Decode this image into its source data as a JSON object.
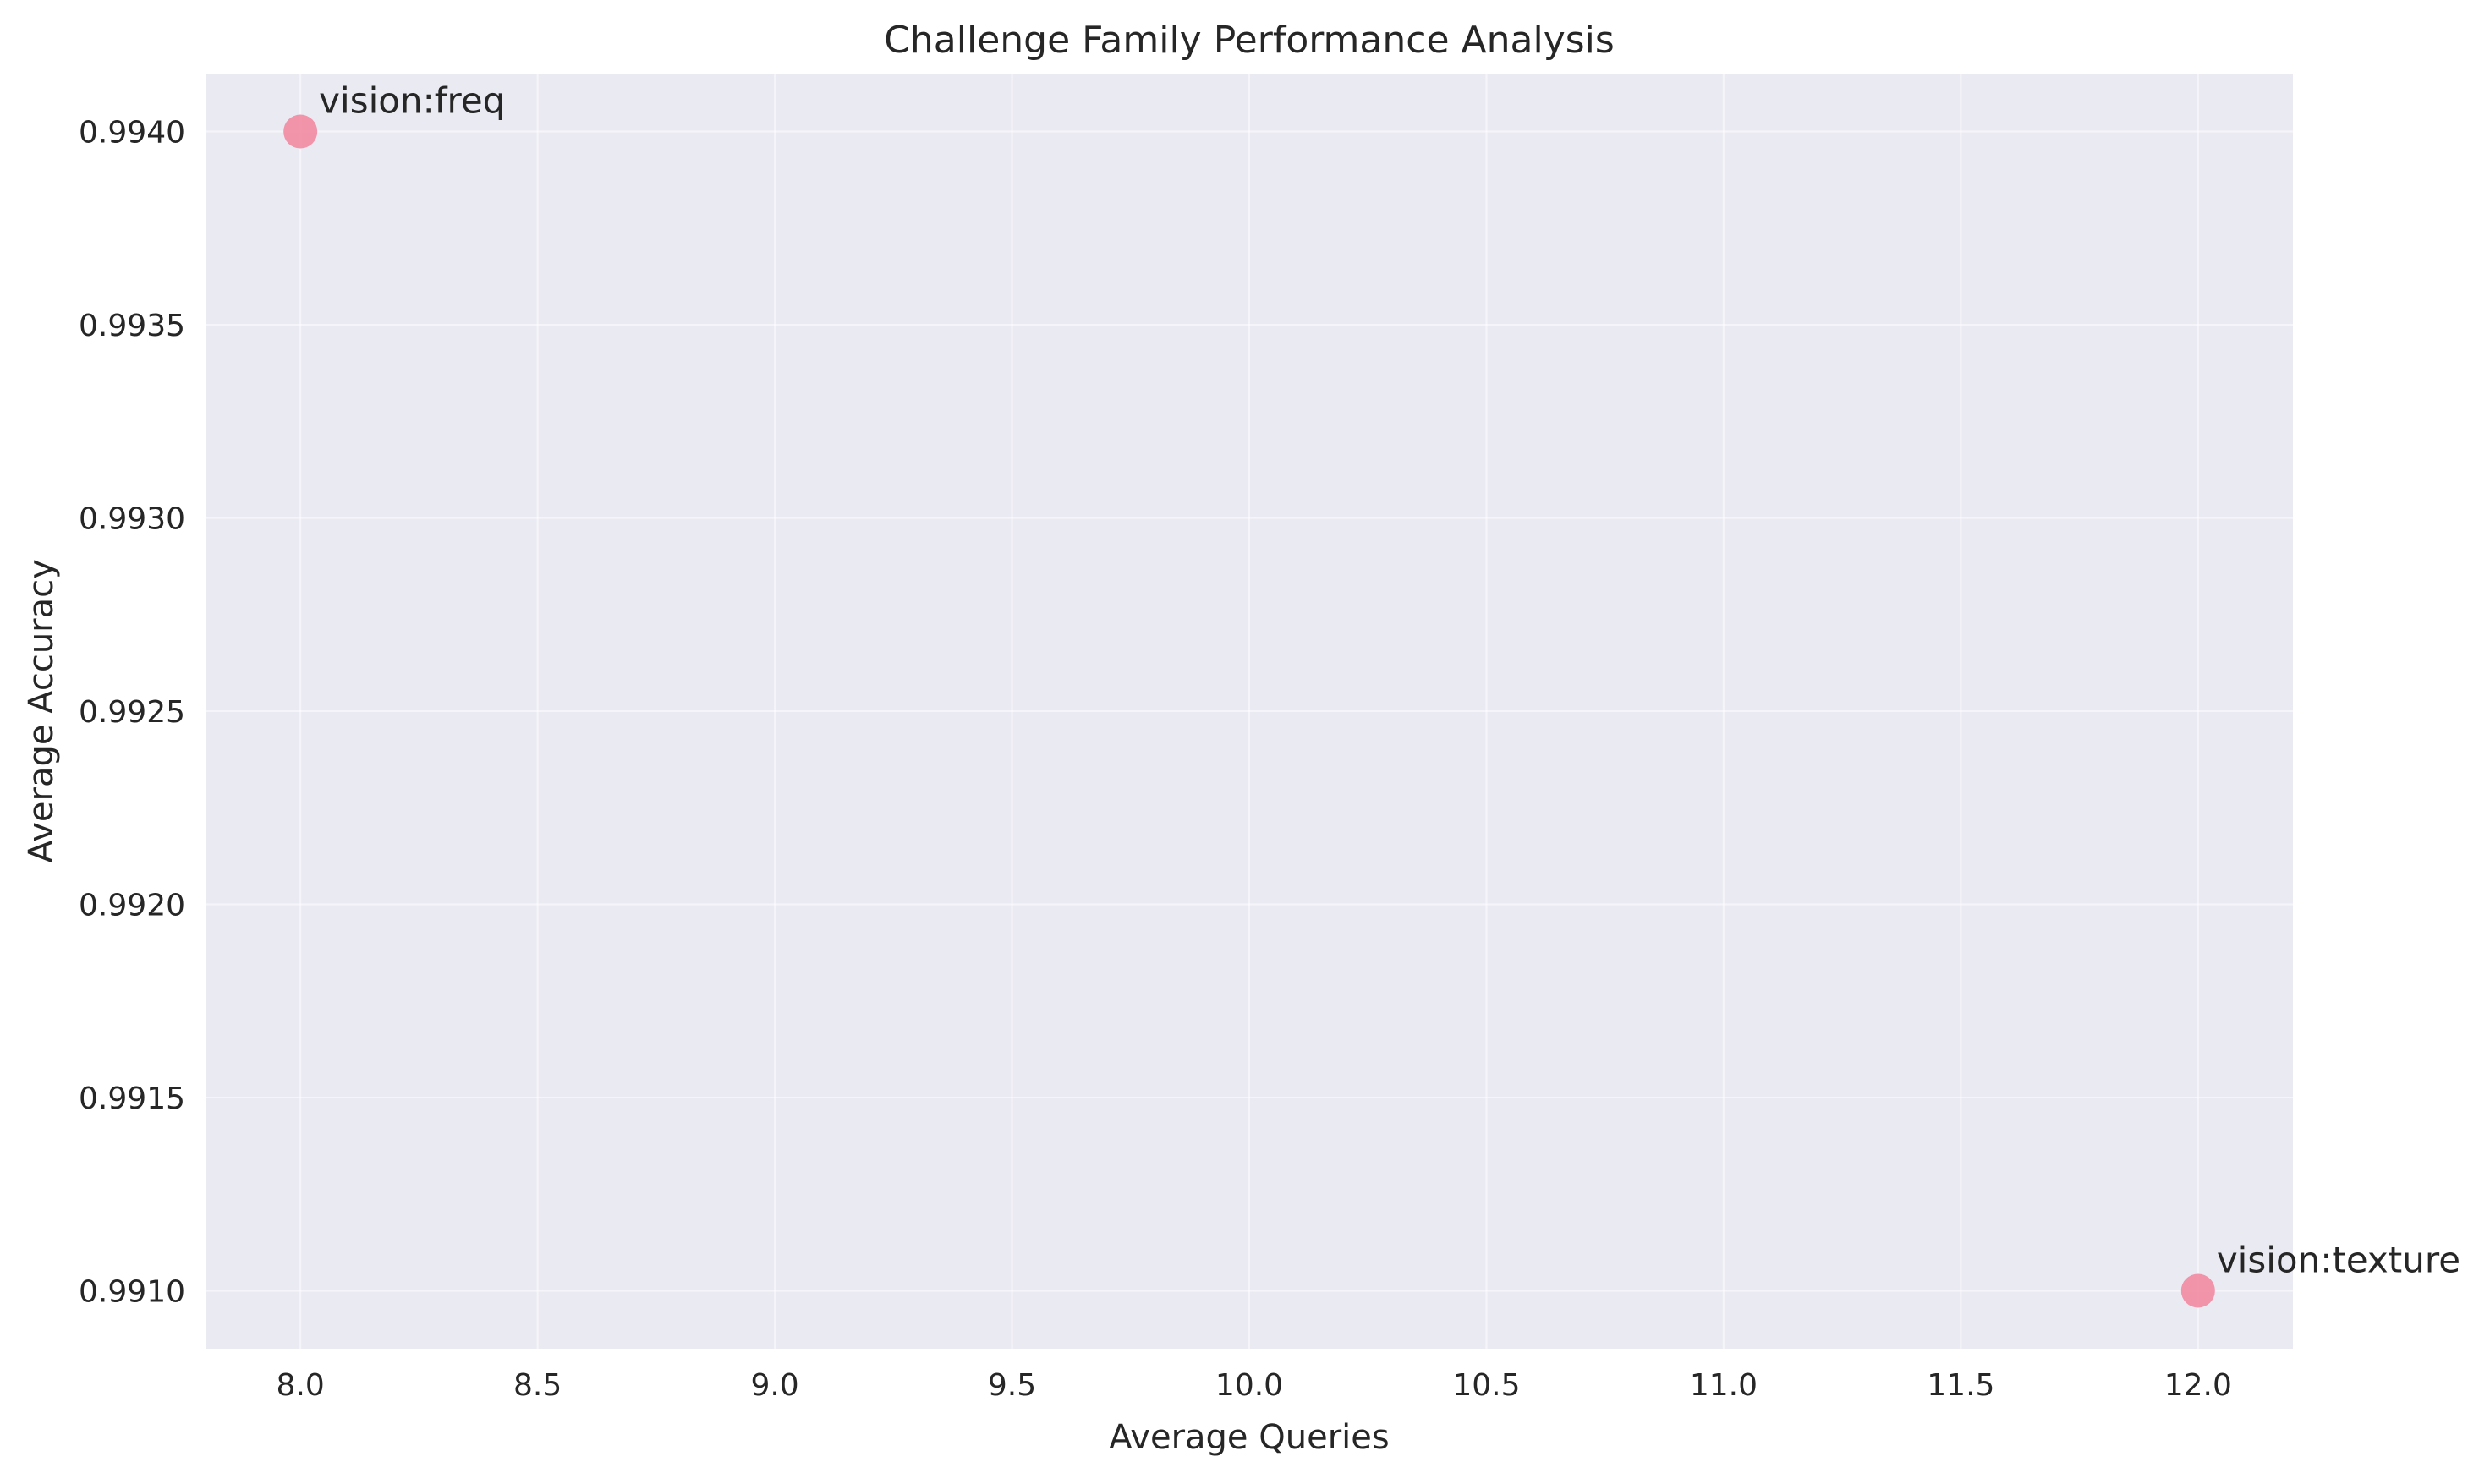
{
  "chart_data": {
    "type": "scatter",
    "title": "Challenge Family Performance Analysis",
    "xlabel": "Average Queries",
    "ylabel": "Average Accuracy",
    "xlim": [
      7.8,
      12.2
    ],
    "ylim": [
      0.99085,
      0.99415
    ],
    "x_ticks": [
      8.0,
      8.5,
      9.0,
      9.5,
      10.0,
      10.5,
      11.0,
      11.5,
      12.0
    ],
    "x_tick_labels": [
      "8.0",
      "8.5",
      "9.0",
      "9.5",
      "10.0",
      "10.5",
      "11.0",
      "11.5",
      "12.0"
    ],
    "y_ticks": [
      0.991,
      0.9915,
      0.992,
      0.9925,
      0.993,
      0.9935,
      0.994
    ],
    "y_tick_labels": [
      "0.9910",
      "0.9915",
      "0.9920",
      "0.9925",
      "0.9930",
      "0.9935",
      "0.9940"
    ],
    "grid": true,
    "points": [
      {
        "label": "vision:freq",
        "x": 8.0,
        "y": 0.994
      },
      {
        "label": "vision:texture",
        "x": 12.0,
        "y": 0.991
      }
    ],
    "colors": {
      "background": "#eaeaf2",
      "point": "#f2849c"
    }
  }
}
